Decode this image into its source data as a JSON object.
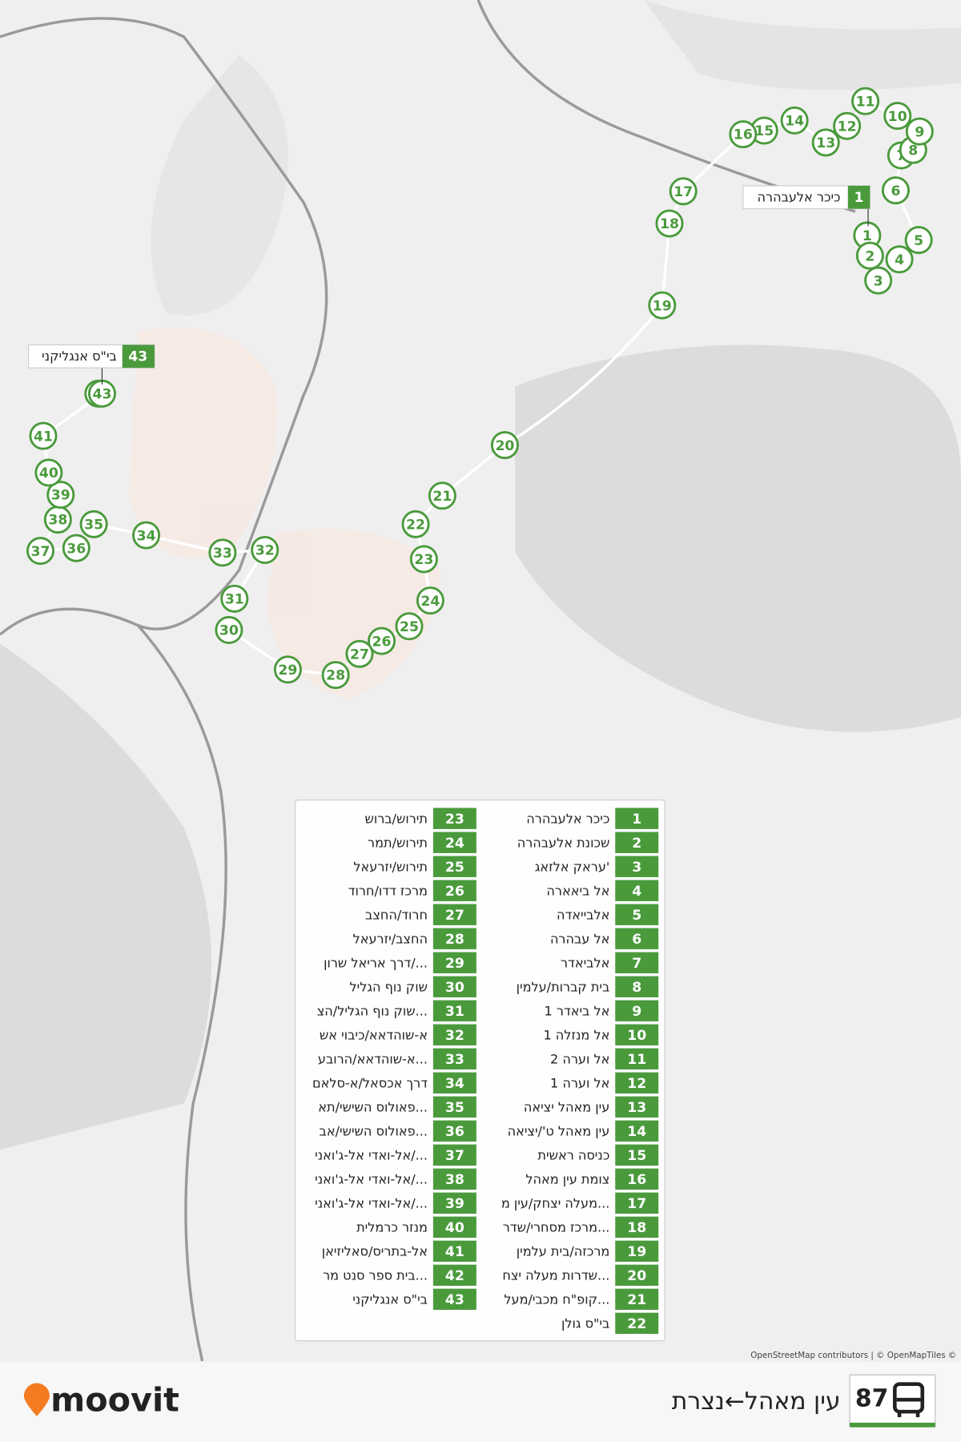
{
  "route": {
    "number": "87",
    "name": "עין מאהל←נצרת"
  },
  "logo": "moovit",
  "attribution": "OpenStreetMap contributors | © OpenMapTiles ©",
  "stops": [
    {
      "number": 1,
      "name": "כיכר אלעבהרה"
    },
    {
      "number": 2,
      "name": "שכונת אלעבהרה"
    },
    {
      "number": 3,
      "name": "עראק אלזאג'"
    },
    {
      "number": 4,
      "name": "אל ביאארה"
    },
    {
      "number": 5,
      "name": "אלבייאדה"
    },
    {
      "number": 6,
      "name": "אל עבהרה"
    },
    {
      "number": 7,
      "name": "אלביאדר"
    },
    {
      "number": 8,
      "name": "בית קברות/עלמין"
    },
    {
      "number": 9,
      "name": "אל ביאדר 1"
    },
    {
      "number": 10,
      "name": "אל מנזלה 1"
    },
    {
      "number": 11,
      "name": "אל וערה 2"
    },
    {
      "number": 12,
      "name": "אל וערה 1"
    },
    {
      "number": 13,
      "name": "עין מאהל יציאה"
    },
    {
      "number": 14,
      "name": "עין מאהל ט'/יציאה"
    },
    {
      "number": 15,
      "name": "כניסה ראשית"
    },
    {
      "number": 16,
      "name": "צומת עין מאהל"
    },
    {
      "number": 17,
      "name": "מעלה יצחק/עין מ..."
    },
    {
      "number": 18,
      "name": "מרכז מסחרי/שדר..."
    },
    {
      "number": 19,
      "name": "מרכזה/בית עלמין"
    },
    {
      "number": 20,
      "name": "שדרות מעלה יצח..."
    },
    {
      "number": 21,
      "name": "קופ\"ח מכבי/מעל..."
    },
    {
      "number": 22,
      "name": "בי\"ס גולן"
    },
    {
      "number": 23,
      "name": "תירוש/ברוש"
    },
    {
      "number": 24,
      "name": "תירוש/תמר"
    },
    {
      "number": 25,
      "name": "תירוש/יזרעאל"
    },
    {
      "number": 26,
      "name": "מרכז דדו/חרוד"
    },
    {
      "number": 27,
      "name": "חרוד/החצב"
    },
    {
      "number": 28,
      "name": "החצב/יזרעאל"
    },
    {
      "number": 29,
      "name": "דרך אריאל שרון/..."
    },
    {
      "number": 30,
      "name": "שוק נוף הגליל"
    },
    {
      "number": 31,
      "name": "שוק נוף הגליל/הצ..."
    },
    {
      "number": 32,
      "name": "א-שוהדאא/כיבוי אש"
    },
    {
      "number": 33,
      "name": "א-שוהדאא/הרובע..."
    },
    {
      "number": 34,
      "name": "דרך אכסאל/א-סלאם"
    },
    {
      "number": 35,
      "name": "פאולוס השישי/תא..."
    },
    {
      "number": 36,
      "name": "פאולוס השישי/אב..."
    },
    {
      "number": 37,
      "name": "אל-ואדי אל-ג'ואני/..."
    },
    {
      "number": 38,
      "name": "אל-ואדי אל-ג'ואני/..."
    },
    {
      "number": 39,
      "name": "אל-ואדי אל-ג'ואני/..."
    },
    {
      "number": 40,
      "name": "מנזר כרמלית"
    },
    {
      "number": 41,
      "name": "אל-בתריס/סאליזיאן"
    },
    {
      "number": 42,
      "name": "בית ספר סנט מר..."
    },
    {
      "number": 43,
      "name": "בי\"ס אנגליקני"
    }
  ]
}
